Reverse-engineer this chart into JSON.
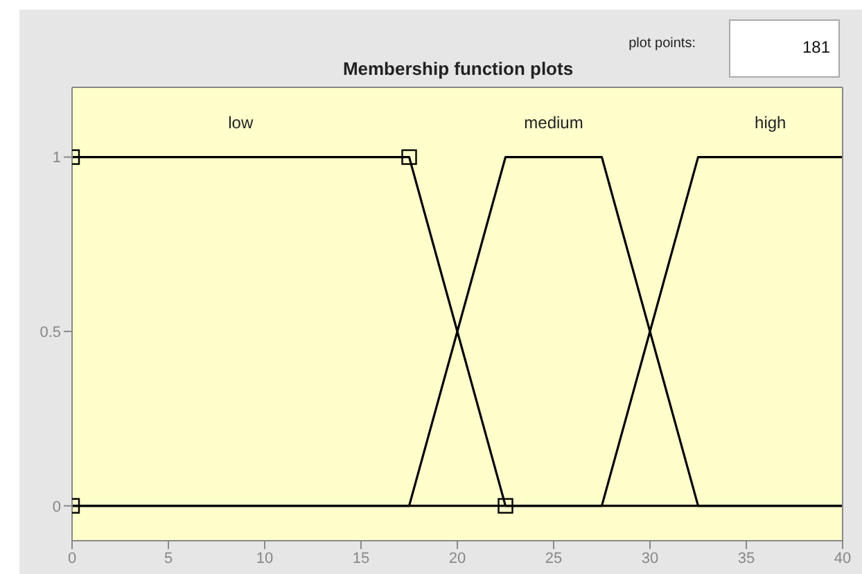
{
  "chart_data": {
    "type": "line",
    "title": "Membership function plots",
    "annotations": [
      "plot points:",
      "181"
    ],
    "xlim": [
      0,
      40
    ],
    "xticks": [
      0,
      5,
      10,
      15,
      20,
      25,
      30,
      35,
      40
    ],
    "ylim": [
      -0.1,
      1.2
    ],
    "yticks": [
      0,
      0.5,
      1
    ],
    "grid": false,
    "legend": false,
    "marker": "none",
    "line_style": "solid",
    "series": [
      {
        "name": "low",
        "color": "#000000",
        "x": [
          0,
          17.5,
          22.5,
          40
        ],
        "values": [
          1,
          1,
          0,
          0
        ]
      },
      {
        "name": "medium",
        "color": "#000000",
        "x": [
          0,
          17.5,
          22.5,
          27.5,
          32.5,
          40
        ],
        "values": [
          0,
          0,
          1,
          1,
          0,
          0
        ]
      },
      {
        "name": "high",
        "color": "#000000",
        "x": [
          0,
          27.5,
          32.5,
          40
        ],
        "values": [
          0,
          0,
          1,
          1
        ]
      },
      {
        "type": "scatter",
        "marker": "square",
        "color": "#000000",
        "x": [
          0,
          0,
          17.5,
          22.5
        ],
        "values": [
          0,
          1,
          1,
          0
        ]
      }
    ]
  }
}
